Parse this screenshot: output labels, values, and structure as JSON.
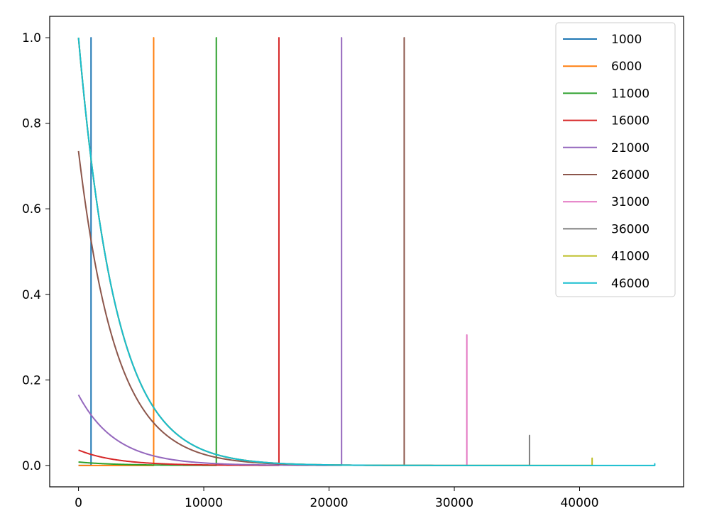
{
  "chart_data": {
    "type": "line",
    "title": "",
    "xlabel": "",
    "ylabel": "",
    "xlim": [
      -2300,
      48300
    ],
    "ylim": [
      -0.05,
      1.05
    ],
    "xticks": [
      0,
      10000,
      20000,
      30000,
      40000
    ],
    "yticks": [
      0.0,
      0.2,
      0.4,
      0.6,
      0.8,
      1.0
    ],
    "xtick_labels": [
      "0",
      "10000",
      "20000",
      "30000",
      "40000"
    ],
    "ytick_labels": [
      "0.0",
      "0.2",
      "0.4",
      "0.6",
      "0.8",
      "1.0"
    ],
    "grid": false,
    "legend_position": "top-right",
    "decay_constant": 3000,
    "series": [
      {
        "name": "1000",
        "color": "#1f77b4",
        "spike_x": 1000,
        "spike_y": 1.0,
        "start_y": 0.0
      },
      {
        "name": "6000",
        "color": "#ff7f0e",
        "spike_x": 6000,
        "spike_y": 1.0,
        "start_y": 0.0
      },
      {
        "name": "11000",
        "color": "#2ca02c",
        "spike_x": 11000,
        "spike_y": 1.0,
        "start_y": 0.008
      },
      {
        "name": "16000",
        "color": "#d62728",
        "spike_x": 16000,
        "spike_y": 1.0,
        "start_y": 0.036
      },
      {
        "name": "21000",
        "color": "#9467bd",
        "spike_x": 21000,
        "spike_y": 1.0,
        "start_y": 0.165
      },
      {
        "name": "26000",
        "color": "#8c564b",
        "spike_x": 26000,
        "spike_y": 1.0,
        "start_y": 0.735
      },
      {
        "name": "31000",
        "color": "#e377c2",
        "spike_x": 31000,
        "spike_y": 0.305,
        "start_y": 1.0
      },
      {
        "name": "36000",
        "color": "#7f7f7f",
        "spike_x": 36000,
        "spike_y": 0.07,
        "start_y": 1.0
      },
      {
        "name": "41000",
        "color": "#bcbd22",
        "spike_x": 41000,
        "spike_y": 0.017,
        "start_y": 1.0
      },
      {
        "name": "46000",
        "color": "#17becf",
        "spike_x": 46000,
        "spike_y": 0.004,
        "start_y": 1.0
      }
    ]
  }
}
